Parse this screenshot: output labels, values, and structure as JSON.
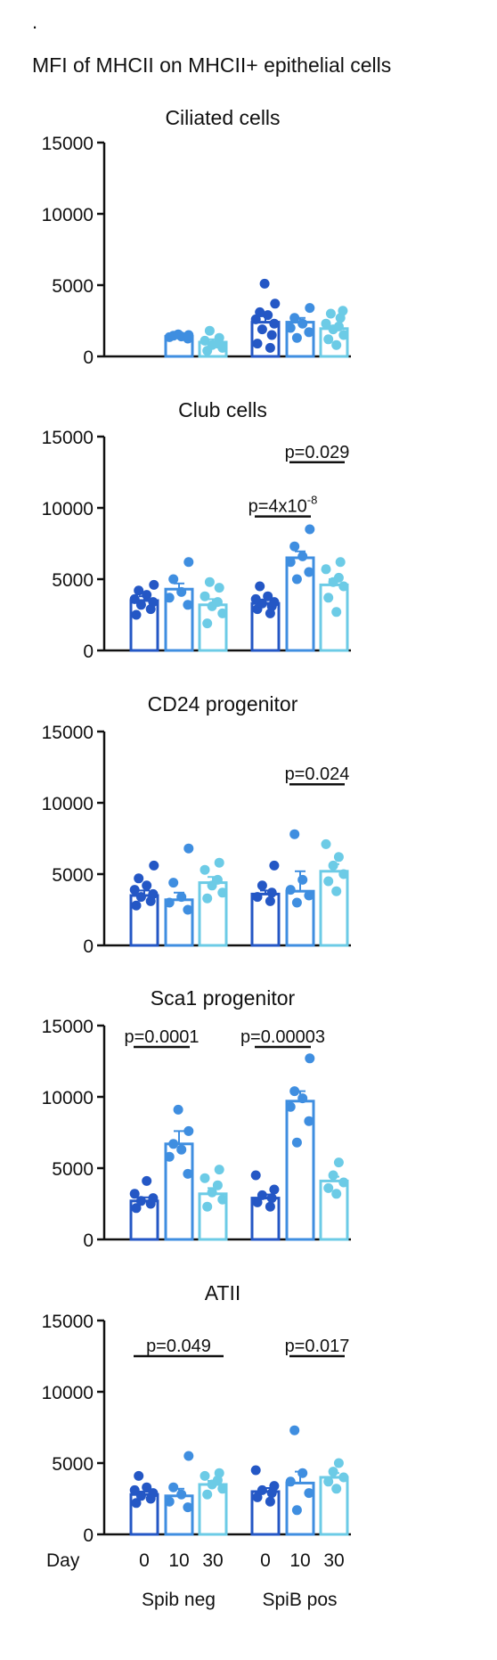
{
  "header": {
    "dot": ".",
    "title": "MFI of MHCII on MHCII+ epithelial cells"
  },
  "x_axis": {
    "label": "Day",
    "days": [
      "0",
      "10",
      "30",
      "0",
      "10",
      "30"
    ],
    "groups": [
      "Spib neg",
      "SpiB pos"
    ]
  },
  "colors": {
    "day0": "#2457c5",
    "day10": "#3f8ee0",
    "day30": "#6ccbe6",
    "axis": "#111111"
  },
  "chart_data": [
    {
      "type": "bar",
      "title": "Ciliated cells",
      "ylim": [
        0,
        15000
      ],
      "yticks": [
        0,
        5000,
        10000,
        15000
      ],
      "categories": [
        "0",
        "10",
        "30",
        "0",
        "10",
        "30"
      ],
      "groups": [
        "Spib neg",
        "Spib neg",
        "Spib neg",
        "SpiB pos",
        "SpiB pos",
        "SpiB pos"
      ],
      "values": [
        null,
        1400,
        1000,
        2400,
        2400,
        1950
      ],
      "errors": [
        null,
        120,
        200,
        420,
        300,
        200
      ],
      "points": [
        [],
        [
          1250,
          1350,
          1400,
          1450,
          1500,
          1550
        ],
        [
          400,
          600,
          800,
          900,
          1100,
          1300,
          1800
        ],
        [
          600,
          900,
          1500,
          1900,
          2300,
          2600,
          2900,
          3100,
          3700,
          5100
        ],
        [
          1300,
          1700,
          2000,
          2300,
          2700,
          3400
        ],
        [
          800,
          1200,
          1500,
          1900,
          2100,
          2300,
          2700,
          3000,
          3200
        ]
      ],
      "annotations": []
    },
    {
      "type": "bar",
      "title": "Club cells",
      "ylim": [
        0,
        15000
      ],
      "yticks": [
        0,
        5000,
        10000,
        15000
      ],
      "categories": [
        "0",
        "10",
        "30",
        "0",
        "10",
        "30"
      ],
      "groups": [
        "Spib neg",
        "Spib neg",
        "Spib neg",
        "SpiB pos",
        "SpiB pos",
        "SpiB pos"
      ],
      "values": [
        3500,
        4300,
        3200,
        3300,
        6500,
        4600
      ],
      "errors": [
        300,
        400,
        400,
        250,
        450,
        400
      ],
      "points": [
        [
          2500,
          2900,
          3200,
          3400,
          3600,
          3900,
          4200,
          4600
        ],
        [
          3200,
          3700,
          4100,
          5000,
          6200
        ],
        [
          1900,
          2600,
          3100,
          3400,
          3800,
          4400,
          4800
        ],
        [
          2600,
          2900,
          3100,
          3300,
          3400,
          3600,
          3800,
          4500
        ],
        [
          5000,
          5500,
          6200,
          6600,
          7300,
          8500
        ],
        [
          2700,
          3700,
          4500,
          4800,
          5100,
          5700,
          6200
        ]
      ],
      "annotations": [
        {
          "from": 4,
          "to": 5,
          "y": 13200,
          "text": "p=0.029",
          "exp": ""
        },
        {
          "from": 3,
          "to": 4,
          "y": 9400,
          "text": "p=4x10",
          "exp": "-8"
        }
      ]
    },
    {
      "type": "bar",
      "title": "CD24 progenitor",
      "ylim": [
        0,
        15000
      ],
      "yticks": [
        0,
        5000,
        10000,
        15000
      ],
      "categories": [
        "0",
        "10",
        "30",
        "0",
        "10",
        "30"
      ],
      "groups": [
        "Spib neg",
        "Spib neg",
        "Spib neg",
        "SpiB pos",
        "SpiB pos",
        "SpiB pos"
      ],
      "values": [
        3500,
        3200,
        4400,
        3600,
        3800,
        5200
      ],
      "errors": [
        350,
        500,
        400,
        250,
        1400,
        500
      ],
      "points": [
        [
          2800,
          3100,
          3400,
          3600,
          3900,
          4200,
          4700,
          5600
        ],
        [
          2500,
          3000,
          3400,
          4400,
          6800
        ],
        [
          3300,
          3700,
          4200,
          4600,
          5300,
          5800
        ],
        [
          3100,
          3400,
          3700,
          4200,
          5600
        ],
        [
          3000,
          3500,
          3900,
          4600,
          7800
        ],
        [
          3800,
          4500,
          5000,
          5600,
          6200,
          7100
        ]
      ],
      "annotations": [
        {
          "from": 4,
          "to": 5,
          "y": 11300,
          "text": "p=0.024",
          "exp": ""
        }
      ]
    },
    {
      "type": "bar",
      "title": "Sca1 progenitor",
      "ylim": [
        0,
        15000
      ],
      "yticks": [
        0,
        5000,
        10000,
        15000
      ],
      "categories": [
        "0",
        "10",
        "30",
        "0",
        "10",
        "30"
      ],
      "groups": [
        "Spib neg",
        "Spib neg",
        "Spib neg",
        "SpiB pos",
        "SpiB pos",
        "SpiB pos"
      ],
      "values": [
        2700,
        6700,
        3200,
        2900,
        9700,
        4100
      ],
      "errors": [
        250,
        900,
        400,
        250,
        700,
        300
      ],
      "points": [
        [
          2200,
          2500,
          2700,
          2900,
          3200,
          4100
        ],
        [
          4600,
          5800,
          6300,
          6700,
          7600,
          9100
        ],
        [
          2300,
          2800,
          3300,
          3800,
          4300,
          4900
        ],
        [
          2300,
          2600,
          2900,
          3100,
          3500,
          4500
        ],
        [
          6800,
          8300,
          9300,
          9900,
          10400,
          12700
        ],
        [
          3200,
          3600,
          4000,
          4500,
          5400
        ]
      ],
      "annotations": [
        {
          "from": 0,
          "to": 1,
          "y": 13500,
          "text": "p=0.0001",
          "exp": ""
        },
        {
          "from": 3,
          "to": 4,
          "y": 13500,
          "text": "p=0.00003",
          "exp": ""
        }
      ]
    },
    {
      "type": "bar",
      "title": "ATII",
      "ylim": [
        0,
        15000
      ],
      "yticks": [
        0,
        5000,
        10000,
        15000
      ],
      "categories": [
        "0",
        "10",
        "30",
        "0",
        "10",
        "30"
      ],
      "groups": [
        "Spib neg",
        "Spib neg",
        "Spib neg",
        "SpiB pos",
        "SpiB pos",
        "SpiB pos"
      ],
      "values": [
        2800,
        2700,
        3500,
        3000,
        3600,
        4000
      ],
      "errors": [
        200,
        500,
        250,
        250,
        800,
        300
      ],
      "points": [
        [
          2200,
          2500,
          2700,
          2900,
          3100,
          3300,
          4100
        ],
        [
          1900,
          2300,
          2800,
          3300,
          5500
        ],
        [
          2800,
          3200,
          3500,
          3800,
          4100,
          4300
        ],
        [
          2300,
          2600,
          2900,
          3100,
          3400,
          4500
        ],
        [
          1700,
          2900,
          3700,
          4300,
          7300
        ],
        [
          3200,
          3700,
          4000,
          4400,
          5000
        ]
      ],
      "annotations": [
        {
          "from": 0,
          "to": 2,
          "y": 12500,
          "text": "p=0.049",
          "exp": ""
        },
        {
          "from": 4,
          "to": 5,
          "y": 12500,
          "text": "p=0.017",
          "exp": ""
        }
      ]
    }
  ]
}
